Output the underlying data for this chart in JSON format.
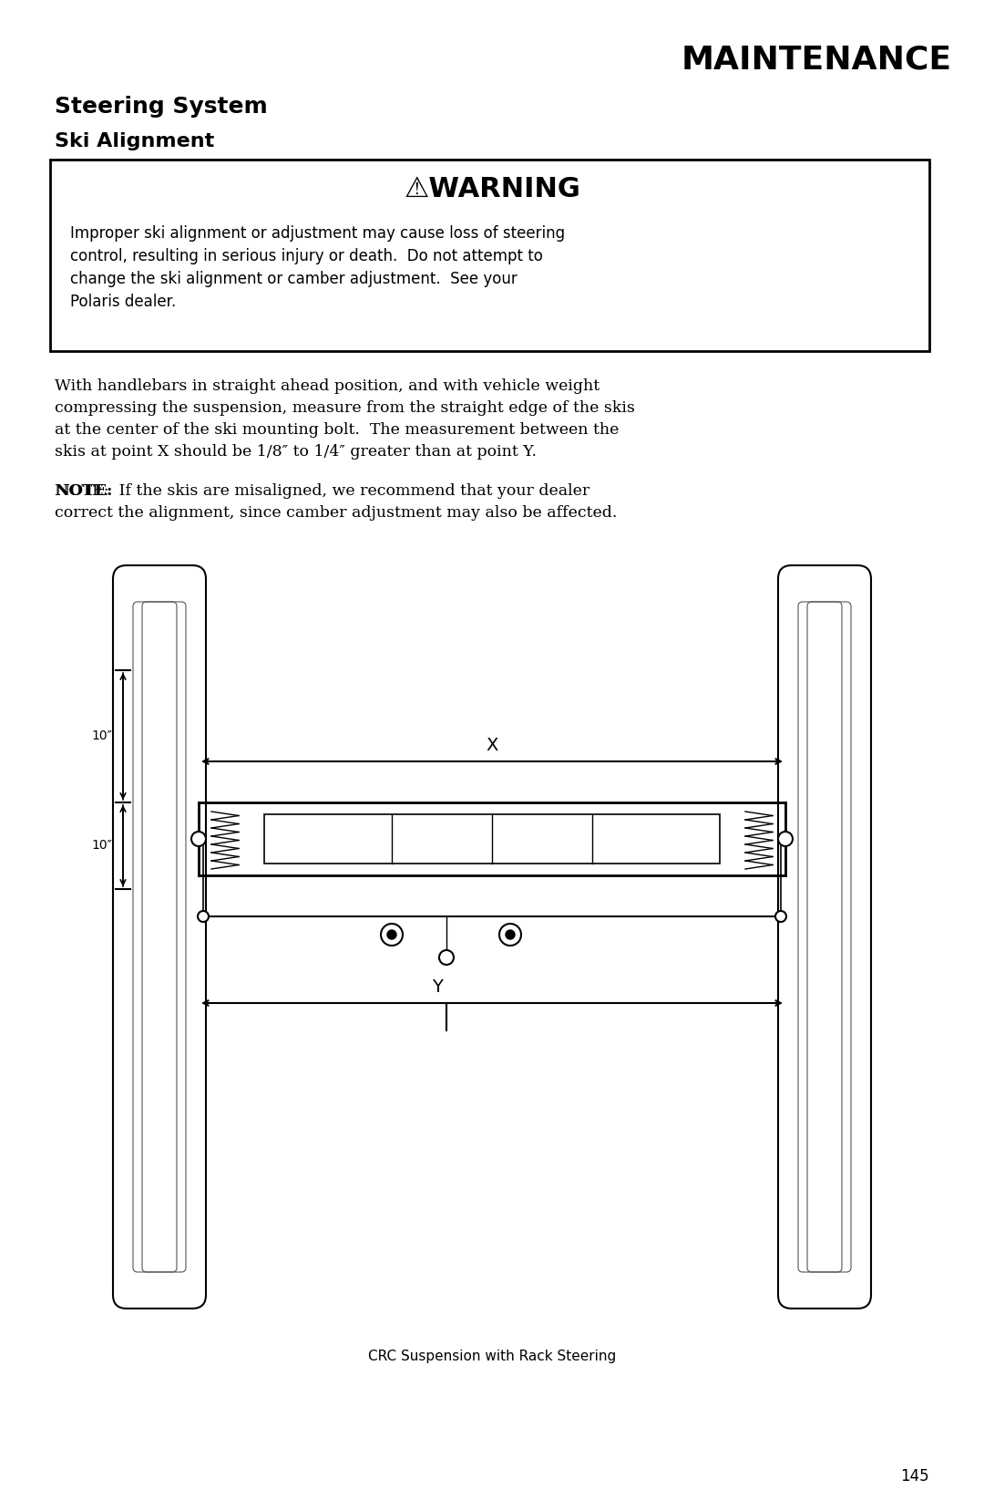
{
  "page_title": "MAINTENANCE",
  "section_title": "Steering System",
  "subsection_title": "Ski Alignment",
  "warning_title": "⚠WARNING",
  "warning_text": "Improper ski alignment or adjustment may cause loss of steering\ncontrol, resulting in serious injury or death.  Do not attempt to\nchange the ski alignment or camber adjustment.  See your\nPolaris dealer.",
  "body_text": "With handlebars in straight ahead position, and with vehicle weight\ncompressing the suspension, measure from the straight edge of the skis\nat the center of the ski mounting bolt.  The measurement between the\nskis at point X should be 1/8″ to 1/4″ greater than at point Y.",
  "note_text": "NOTE:  If the skis are misaligned, we recommend that your dealer\ncorrect the alignment, since camber adjustment may also be affected.",
  "diagram_caption": "CRC Suspension with Rack Steering",
  "page_number": "145",
  "bg_color": "#ffffff",
  "text_color": "#000000"
}
